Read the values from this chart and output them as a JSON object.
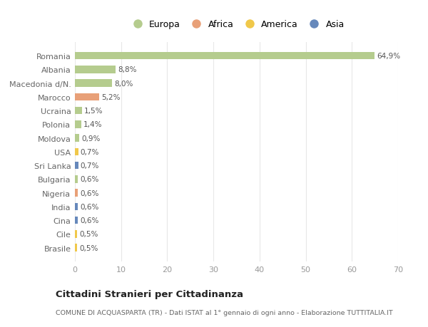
{
  "countries": [
    "Romania",
    "Albania",
    "Macedonia d/N.",
    "Marocco",
    "Ucraina",
    "Polonia",
    "Moldova",
    "USA",
    "Sri Lanka",
    "Bulgaria",
    "Nigeria",
    "India",
    "Cina",
    "Cile",
    "Brasile"
  ],
  "values": [
    64.9,
    8.8,
    8.0,
    5.2,
    1.5,
    1.4,
    0.9,
    0.7,
    0.7,
    0.6,
    0.6,
    0.6,
    0.6,
    0.5,
    0.5
  ],
  "labels": [
    "64,9%",
    "8,8%",
    "8,0%",
    "5,2%",
    "1,5%",
    "1,4%",
    "0,9%",
    "0,7%",
    "0,7%",
    "0,6%",
    "0,6%",
    "0,6%",
    "0,6%",
    "0,5%",
    "0,5%"
  ],
  "continents": [
    "Europa",
    "Europa",
    "Europa",
    "Africa",
    "Europa",
    "Europa",
    "Europa",
    "America",
    "Asia",
    "Europa",
    "Africa",
    "Asia",
    "Asia",
    "America",
    "America"
  ],
  "colors": {
    "Europa": "#b5cc8e",
    "Africa": "#e8a078",
    "America": "#f0c84a",
    "Asia": "#6688bb"
  },
  "bg_color": "#ffffff",
  "plot_bg_color": "#ffffff",
  "grid_color": "#e8e8e8",
  "title": "Cittadini Stranieri per Cittadinanza",
  "subtitle": "COMUNE DI ACQUASPARTA (TR) - Dati ISTAT al 1° gennaio di ogni anno - Elaborazione TUTTITALIA.IT",
  "xlim": [
    0,
    70
  ],
  "xticks": [
    0,
    10,
    20,
    30,
    40,
    50,
    60,
    70
  ],
  "bar_height": 0.55,
  "legend_order": [
    "Europa",
    "Africa",
    "America",
    "Asia"
  ]
}
